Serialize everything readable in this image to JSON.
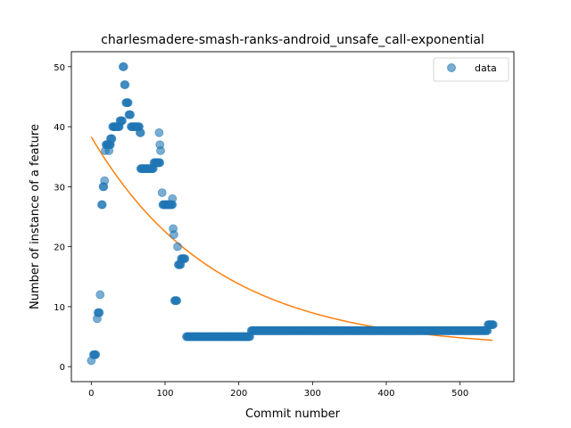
{
  "chart_data": {
    "type": "scatter",
    "title": "charlesmadere-smash-ranks-android_unsafe_call-exponential",
    "xlabel": "Commit number",
    "ylabel": "Number of instance of a feature",
    "xlim": [
      -27,
      573
    ],
    "ylim": [
      -2.5,
      52.5
    ],
    "xticks": [
      0,
      100,
      200,
      300,
      400,
      500
    ],
    "yticks": [
      0,
      10,
      20,
      30,
      40,
      50
    ],
    "grid": false,
    "legend": {
      "position": "top-right",
      "entries": [
        "data"
      ]
    },
    "colors": {
      "data": "#1f77b4",
      "fit": "#ff7f0e"
    },
    "series": [
      {
        "name": "data",
        "kind": "scatter",
        "segments": [
          {
            "from": 0,
            "to": 0,
            "y": 1
          },
          {
            "from": 3,
            "to": 6,
            "y": 2
          },
          {
            "from": 8,
            "to": 8,
            "y": 8
          },
          {
            "from": 9,
            "to": 11,
            "y": 9
          },
          {
            "from": 12,
            "to": 12,
            "y": 12
          },
          {
            "from": 14,
            "to": 15,
            "y": 27
          },
          {
            "from": 16,
            "to": 17,
            "y": 30
          },
          {
            "from": 18,
            "to": 18,
            "y": 31
          },
          {
            "from": 19,
            "to": 19,
            "y": 36
          },
          {
            "from": 20,
            "to": 26,
            "y": 37
          },
          {
            "from": 24,
            "to": 24,
            "y": 36
          },
          {
            "from": 26,
            "to": 28,
            "y": 38
          },
          {
            "from": 29,
            "to": 38,
            "y": 40
          },
          {
            "from": 39,
            "to": 42,
            "y": 41
          },
          {
            "from": 43,
            "to": 44,
            "y": 50
          },
          {
            "from": 45,
            "to": 46,
            "y": 47
          },
          {
            "from": 47,
            "to": 50,
            "y": 44
          },
          {
            "from": 51,
            "to": 53,
            "y": 42
          },
          {
            "from": 54,
            "to": 65,
            "y": 40
          },
          {
            "from": 66,
            "to": 67,
            "y": 39
          },
          {
            "from": 67,
            "to": 84,
            "y": 33
          },
          {
            "from": 85,
            "to": 93,
            "y": 34
          },
          {
            "from": 92,
            "to": 92,
            "y": 39
          },
          {
            "from": 93,
            "to": 93,
            "y": 37
          },
          {
            "from": 94,
            "to": 94,
            "y": 36
          },
          {
            "from": 96,
            "to": 96,
            "y": 29
          },
          {
            "from": 97,
            "to": 110,
            "y": 27
          },
          {
            "from": 110,
            "to": 110,
            "y": 28
          },
          {
            "from": 111,
            "to": 111,
            "y": 23
          },
          {
            "from": 112,
            "to": 112,
            "y": 22
          },
          {
            "from": 113,
            "to": 116,
            "y": 11
          },
          {
            "from": 117,
            "to": 117,
            "y": 20
          },
          {
            "from": 118,
            "to": 121,
            "y": 17
          },
          {
            "from": 122,
            "to": 127,
            "y": 18
          },
          {
            "from": 129,
            "to": 215,
            "y": 5
          },
          {
            "from": 217,
            "to": 537,
            "y": 6
          },
          {
            "from": 538,
            "to": 545,
            "y": 7
          }
        ]
      },
      {
        "kind": "line",
        "fit": {
          "type": "exponential",
          "a": 35.3,
          "b": 0.00593,
          "c": 3.0
        },
        "x_range": [
          0,
          545
        ]
      }
    ]
  }
}
